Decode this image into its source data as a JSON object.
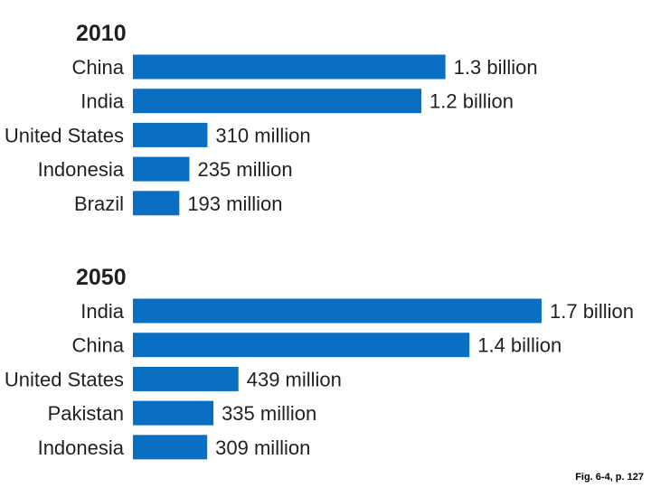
{
  "chart_data": [
    {
      "type": "bar",
      "orientation": "horizontal",
      "title": "2010",
      "units": "population",
      "categories": [
        "China",
        "India",
        "United States",
        "Indonesia",
        "Brazil"
      ],
      "values": [
        1300,
        1200,
        310,
        235,
        193
      ],
      "value_unit": "million",
      "value_labels": [
        "1.3 billion",
        "1.2 billion",
        "310 million",
        "235 million",
        "193 million"
      ],
      "bar_color": "#0a6fc2"
    },
    {
      "type": "bar",
      "orientation": "horizontal",
      "title": "2050",
      "units": "population",
      "categories": [
        "India",
        "China",
        "United States",
        "Pakistan",
        "Indonesia"
      ],
      "values": [
        1700,
        1400,
        439,
        335,
        309
      ],
      "value_unit": "million",
      "value_labels": [
        "1.7 billion",
        "1.4 billion",
        "439 million",
        "335 million",
        "309 million"
      ],
      "bar_color": "#0a6fc2"
    }
  ],
  "caption": "Fig. 6-4, p. 127"
}
